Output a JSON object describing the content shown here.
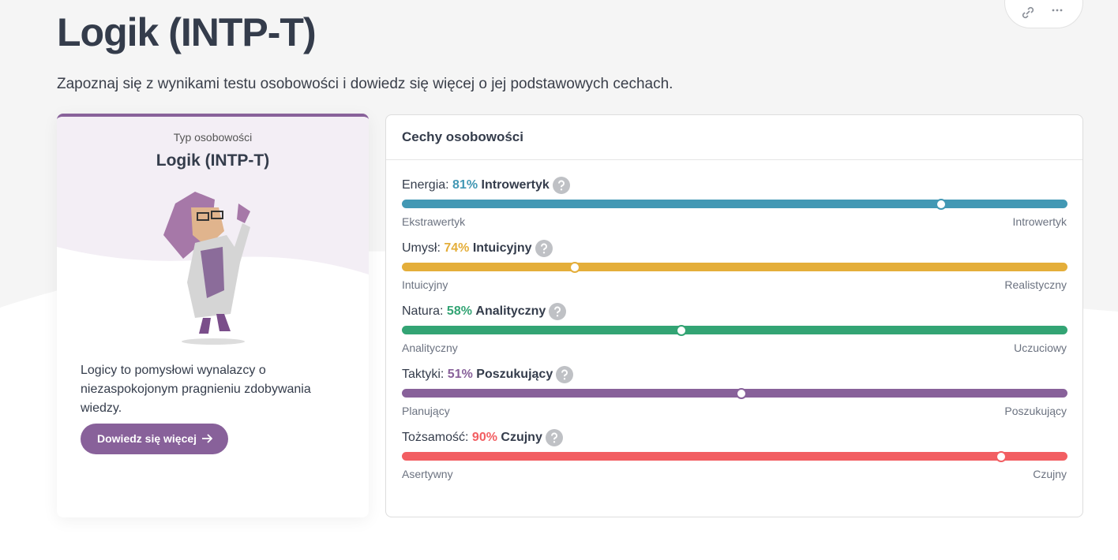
{
  "header": {
    "title": "Logik (INTP-T)",
    "subtitle": "Zapoznaj się z wynikami testu osobowości i dowiedz się więcej o jej podstawowych cechach."
  },
  "card": {
    "label": "Typ osobowości",
    "type_name": "Logik (INTP-T)",
    "description": "Logicy to pomysłowi wynalazcy o niezaspokojonym pragnieniu zdobywania wiedzy.",
    "button": "Dowiedz się więcej"
  },
  "traits_panel": {
    "title": "Cechy osobowości",
    "traits": [
      {
        "name": "Energia:",
        "percent": 81,
        "percent_label": "81%",
        "trait": "Introwertyk",
        "left": "Ekstrawertyk",
        "right": "Introwertyk",
        "color": "#4298b4"
      },
      {
        "name": "Umysł:",
        "percent": 74,
        "percent_label": "74%",
        "trait": "Intuicyjny",
        "left": "Intuicyjny",
        "right": "Realistyczny",
        "color": "#e4ae3a"
      },
      {
        "name": "Natura:",
        "percent": 58,
        "percent_label": "58%",
        "trait": "Analityczny",
        "left": "Analityczny",
        "right": "Uczuciowy",
        "color": "#33a474"
      },
      {
        "name": "Taktyki:",
        "percent": 51,
        "percent_label": "51%",
        "trait": "Poszukujący",
        "left": "Planujący",
        "right": "Poszukujący",
        "color": "#88619a"
      },
      {
        "name": "Tożsamość:",
        "percent": 90,
        "percent_label": "90%",
        "trait": "Czujny",
        "left": "Asertywny",
        "right": "Czujny",
        "color": "#f25e62"
      }
    ]
  }
}
